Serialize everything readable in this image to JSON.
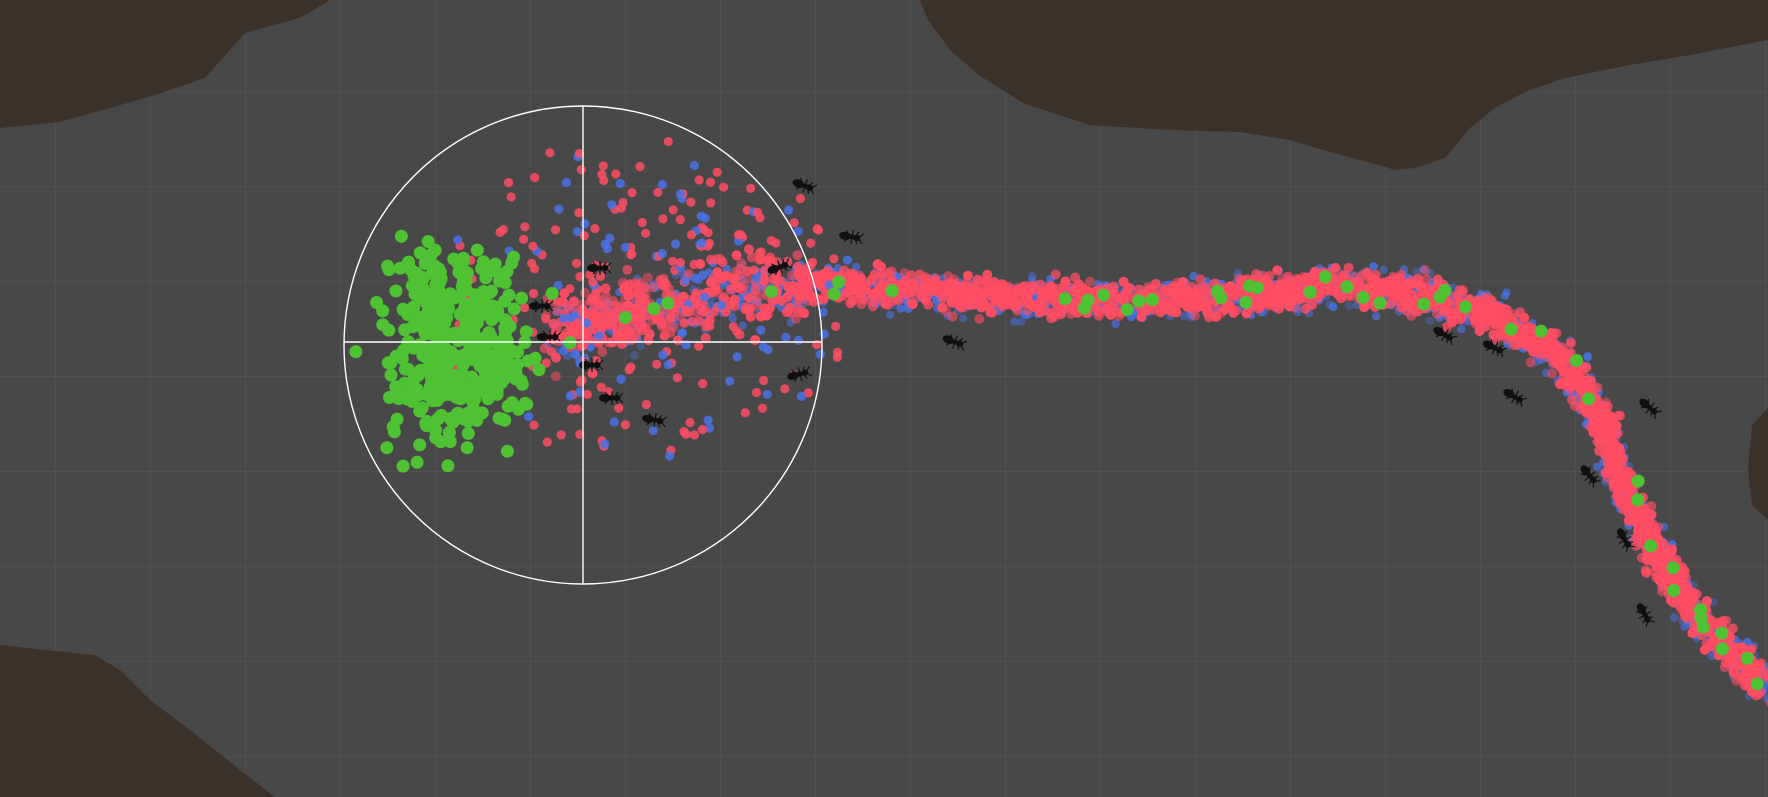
{
  "scene": {
    "view": "ant-simulation-scene-view",
    "colors": {
      "background": "#484848",
      "wall": "#3b3129",
      "grid": "#555555",
      "food": "#4ec233",
      "home_pheromone": "#4a72e6",
      "food_pheromone": "#ff4d63",
      "ant": "#101010",
      "gizmo": "#ffffff"
    },
    "icons": [
      "ant-icon",
      "food-pellet",
      "pheromone-dot",
      "selection-gizmo"
    ]
  }
}
